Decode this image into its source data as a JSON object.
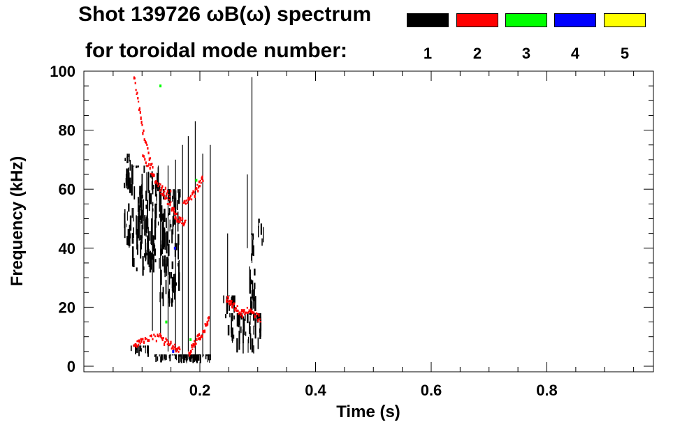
{
  "title_line1": "Shot 139726 ωB(ω) spectrum",
  "title_line2": "for toroidal mode number:",
  "legend": [
    {
      "label": "1",
      "color": "#000000"
    },
    {
      "label": "2",
      "color": "#ff0000"
    },
    {
      "label": "3",
      "color": "#00ff00"
    },
    {
      "label": "4",
      "color": "#0000ff"
    },
    {
      "label": "5",
      "color": "#ffff00"
    }
  ],
  "chart_data": {
    "type": "heatmap",
    "title": "Shot 139726 ωB(ω) spectrum for toroidal mode number",
    "xlabel": "Time (s)",
    "ylabel": "Frequency (kHz)",
    "xlim": [
      0.0,
      1.0
    ],
    "ylim": [
      0,
      100
    ],
    "x_ticks": [
      {
        "value": 0.2,
        "label": "0.2"
      },
      {
        "value": 0.4,
        "label": "0.4"
      },
      {
        "value": 0.6,
        "label": "0.6"
      },
      {
        "value": 0.8,
        "label": "0.8"
      }
    ],
    "y_ticks": [
      {
        "value": 0,
        "label": "0"
      },
      {
        "value": 20,
        "label": "20"
      },
      {
        "value": 40,
        "label": "40"
      },
      {
        "value": 60,
        "label": "60"
      },
      {
        "value": 80,
        "label": "80"
      },
      {
        "value": 100,
        "label": "100"
      }
    ],
    "x_minor_step": 0.05,
    "y_minor_step": 5,
    "modes": [
      {
        "n": 1,
        "color": "#000000",
        "regions": [
          {
            "t": [
              0.068,
              0.082
            ],
            "f": [
              40,
              72
            ]
          },
          {
            "t": [
              0.082,
              0.13
            ],
            "f": [
              30,
              68
            ]
          },
          {
            "t": [
              0.13,
              0.165
            ],
            "f": [
              20,
              60
            ]
          },
          {
            "t": [
              0.08,
              0.11
            ],
            "f": [
              3,
              7
            ]
          },
          {
            "t": [
              0.12,
              0.22
            ],
            "f": [
              1,
              4
            ]
          },
          {
            "t": [
              0.245,
              0.305
            ],
            "f": [
              4,
              18
            ]
          },
          {
            "t": [
              0.24,
              0.26
            ],
            "f": [
              16,
              24
            ]
          },
          {
            "t": [
              0.285,
              0.295
            ],
            "f": [
              16,
              45
            ]
          },
          {
            "t": [
              0.3,
              0.31
            ],
            "f": [
              40,
              50
            ]
          }
        ],
        "streaks": [
          {
            "t": 0.118,
            "f": [
              12,
              55
            ]
          },
          {
            "t": 0.132,
            "f": [
              10,
              60
            ]
          },
          {
            "t": 0.145,
            "f": [
              5,
              68
            ]
          },
          {
            "t": 0.158,
            "f": [
              5,
              70
            ]
          },
          {
            "t": 0.17,
            "f": [
              4,
              75
            ]
          },
          {
            "t": 0.18,
            "f": [
              5,
              78
            ]
          },
          {
            "t": 0.192,
            "f": [
              4,
              83
            ]
          },
          {
            "t": 0.205,
            "f": [
              3,
              72
            ]
          },
          {
            "t": 0.218,
            "f": [
              3,
              75
            ]
          },
          {
            "t": 0.29,
            "f": [
              35,
              98
            ]
          },
          {
            "t": 0.282,
            "f": [
              40,
              65
            ]
          },
          {
            "t": 0.248,
            "f": [
              20,
              45
            ]
          }
        ]
      },
      {
        "n": 2,
        "color": "#ff0000",
        "traces": [
          {
            "t": [
              0.085,
              0.1,
              0.12
            ],
            "f": [
              98,
              80,
              65
            ]
          },
          {
            "t": [
              0.1,
              0.125,
              0.15
            ],
            "f": [
              72,
              62,
              58
            ]
          },
          {
            "t": [
              0.13,
              0.15,
              0.16,
              0.175
            ],
            "f": [
              60,
              54,
              50,
              49
            ]
          },
          {
            "t": [
              0.17,
              0.19,
              0.205
            ],
            "f": [
              55,
              59,
              64
            ]
          },
          {
            "t": [
              0.245,
              0.255,
              0.27,
              0.285,
              0.305
            ],
            "f": [
              23,
              21,
              18,
              19,
              16
            ]
          },
          {
            "t": [
              0.085,
              0.1,
              0.13,
              0.15,
              0.165
            ],
            "f": [
              8,
              9,
              10,
              7,
              5
            ]
          },
          {
            "t": [
              0.18,
              0.19,
              0.205,
              0.215
            ],
            "f": [
              5,
              8,
              12,
              16
            ]
          }
        ]
      },
      {
        "n": 3,
        "color": "#00ff00",
        "points": [
          {
            "t": 0.13,
            "f": 95
          },
          {
            "t": 0.192,
            "f": 63
          },
          {
            "t": 0.182,
            "f": 9
          },
          {
            "t": 0.14,
            "f": 15
          }
        ]
      },
      {
        "n": 4,
        "color": "#0000ff",
        "points": [
          {
            "t": 0.155,
            "f": 40
          },
          {
            "t": 0.152,
            "f": 5
          }
        ]
      },
      {
        "n": 5,
        "color": "#ffff00",
        "points": []
      }
    ]
  }
}
